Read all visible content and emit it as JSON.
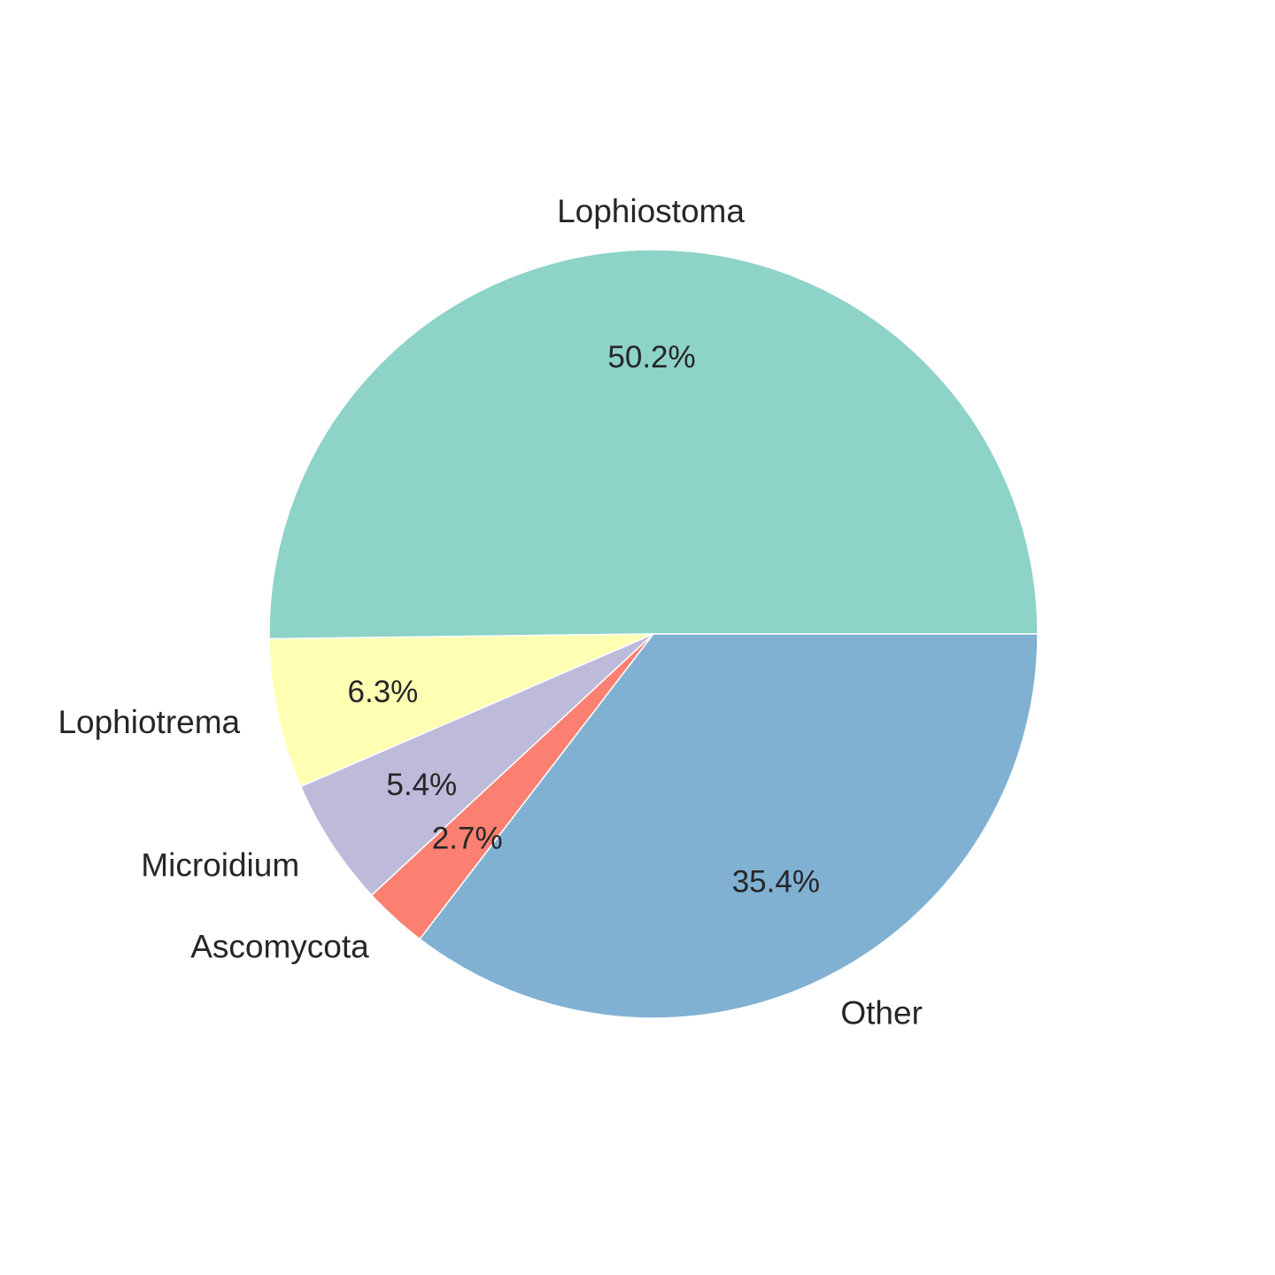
{
  "chart_data": {
    "type": "pie",
    "slices": [
      {
        "label": "Lophiostoma",
        "percent": 50.2,
        "percent_label": "50.2%",
        "color": "#8dd3c7"
      },
      {
        "label": "Lophiotrema",
        "percent": 6.3,
        "percent_label": "6.3%",
        "color": "#ffffb3"
      },
      {
        "label": "Microidium",
        "percent": 5.4,
        "percent_label": "5.4%",
        "color": "#bebada"
      },
      {
        "label": "Ascomycota",
        "percent": 2.7,
        "percent_label": "2.7%",
        "color": "#fb8072"
      },
      {
        "label": "Other",
        "percent": 35.4,
        "percent_label": "35.4%",
        "color": "#80b1d3"
      }
    ],
    "start_angle_deg": 0,
    "direction": "counterclockwise",
    "legend": "none"
  }
}
